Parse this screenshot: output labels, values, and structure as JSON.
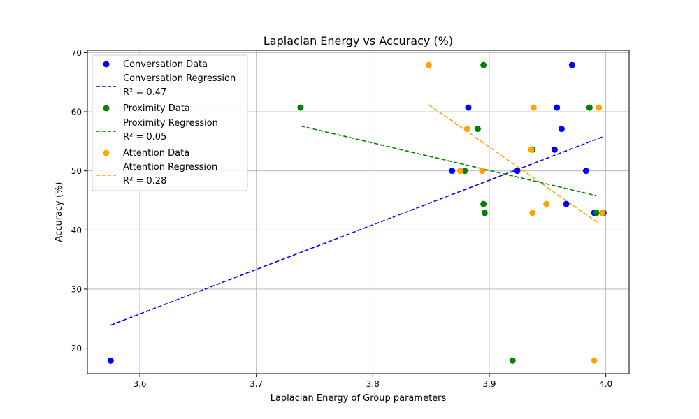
{
  "chart_data": {
    "type": "scatter",
    "title": "Laplacian Energy vs Accuracy (%)",
    "xlabel": "Laplacian Energy of Group parameters",
    "ylabel": "Accuracy (%)",
    "xlim": [
      3.555,
      4.02
    ],
    "ylim": [
      15.7,
      70.4
    ],
    "xticks": [
      3.6,
      3.7,
      3.8,
      3.9,
      4.0
    ],
    "xtick_labels": [
      "3.6",
      "3.7",
      "3.8",
      "3.9",
      "4.0"
    ],
    "yticks": [
      20,
      30,
      40,
      50,
      60,
      70
    ],
    "ytick_labels": [
      "20",
      "30",
      "40",
      "50",
      "60",
      "70"
    ],
    "grid": true,
    "legend_position": "top-left",
    "series": [
      {
        "name": "Conversation Data",
        "kind": "scatter",
        "color": "#0000ff",
        "points": [
          {
            "x": 3.575,
            "y": 17.9
          },
          {
            "x": 3.868,
            "y": 50.0
          },
          {
            "x": 3.882,
            "y": 60.7
          },
          {
            "x": 3.924,
            "y": 50.0
          },
          {
            "x": 3.937,
            "y": 53.6
          },
          {
            "x": 3.956,
            "y": 53.6
          },
          {
            "x": 3.958,
            "y": 60.7
          },
          {
            "x": 3.962,
            "y": 57.1
          },
          {
            "x": 3.966,
            "y": 44.4
          },
          {
            "x": 3.971,
            "y": 67.9
          },
          {
            "x": 3.983,
            "y": 50.0
          },
          {
            "x": 3.99,
            "y": 42.9
          },
          {
            "x": 3.998,
            "y": 42.9
          }
        ]
      },
      {
        "name": "Conversation Regression",
        "annotation": "R² = 0.47",
        "kind": "line",
        "color": "#0000ff",
        "points": [
          {
            "x": 3.575,
            "y": 23.9
          },
          {
            "x": 3.998,
            "y": 55.8
          }
        ]
      },
      {
        "name": "Proximity Data",
        "kind": "scatter",
        "color": "#008000",
        "points": [
          {
            "x": 3.738,
            "y": 60.7
          },
          {
            "x": 3.879,
            "y": 50.0
          },
          {
            "x": 3.89,
            "y": 57.1
          },
          {
            "x": 3.895,
            "y": 67.9
          },
          {
            "x": 3.895,
            "y": 44.4
          },
          {
            "x": 3.896,
            "y": 42.9
          },
          {
            "x": 3.92,
            "y": 17.9
          },
          {
            "x": 3.937,
            "y": 53.6
          },
          {
            "x": 3.986,
            "y": 60.7
          },
          {
            "x": 3.992,
            "y": 42.9
          },
          {
            "x": 3.997,
            "y": 42.9
          }
        ]
      },
      {
        "name": "Proximity Regression",
        "annotation": "R² = 0.05",
        "kind": "line",
        "color": "#008000",
        "points": [
          {
            "x": 3.738,
            "y": 57.6
          },
          {
            "x": 3.992,
            "y": 45.8
          }
        ]
      },
      {
        "name": "Attention Data",
        "kind": "scatter",
        "color": "#ffa500",
        "points": [
          {
            "x": 3.848,
            "y": 67.9
          },
          {
            "x": 3.875,
            "y": 50.0
          },
          {
            "x": 3.881,
            "y": 57.1
          },
          {
            "x": 3.894,
            "y": 50.0
          },
          {
            "x": 3.936,
            "y": 53.6
          },
          {
            "x": 3.937,
            "y": 42.9
          },
          {
            "x": 3.938,
            "y": 60.7
          },
          {
            "x": 3.949,
            "y": 44.4
          },
          {
            "x": 3.99,
            "y": 17.9
          },
          {
            "x": 3.994,
            "y": 60.7
          },
          {
            "x": 3.997,
            "y": 42.9
          }
        ]
      },
      {
        "name": "Attention Regression",
        "annotation": "R² = 0.28",
        "kind": "line",
        "color": "#ffa500",
        "points": [
          {
            "x": 3.848,
            "y": 61.2
          },
          {
            "x": 3.994,
            "y": 41.1
          }
        ]
      }
    ]
  }
}
